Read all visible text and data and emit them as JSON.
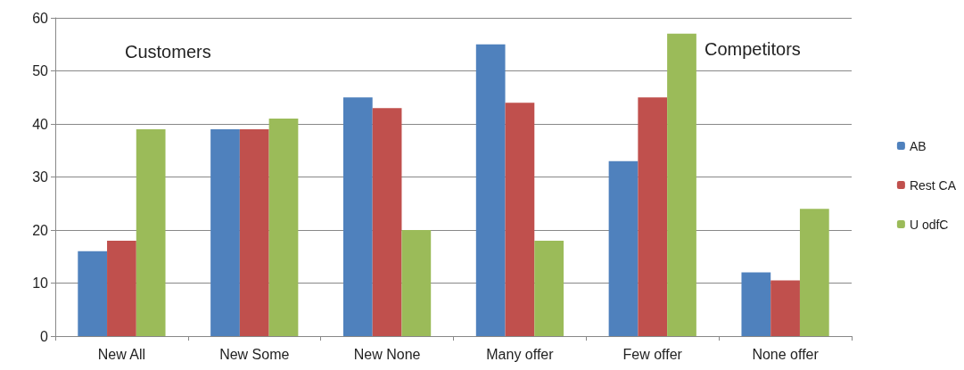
{
  "chart_data": {
    "type": "bar",
    "categories": [
      "New All",
      "New Some",
      "New None",
      "Many offer",
      "Few offer",
      "None offer"
    ],
    "series": [
      {
        "name": "AB",
        "color": "#4f81bd",
        "values": [
          16,
          39,
          45,
          55,
          33,
          12
        ]
      },
      {
        "name": "Rest CA",
        "color": "#c0504d",
        "values": [
          18,
          39,
          43,
          44,
          45,
          10.5
        ]
      },
      {
        "name": "U odfC",
        "color": "#9bbb59",
        "values": [
          39,
          41,
          20,
          18,
          57,
          24
        ]
      }
    ],
    "ylim": [
      0,
      60
    ],
    "yticks": [
      0,
      10,
      20,
      30,
      40,
      50,
      60
    ],
    "grid": "y",
    "legend": "right",
    "annotations": [
      "Customers",
      "Competitors"
    ]
  }
}
